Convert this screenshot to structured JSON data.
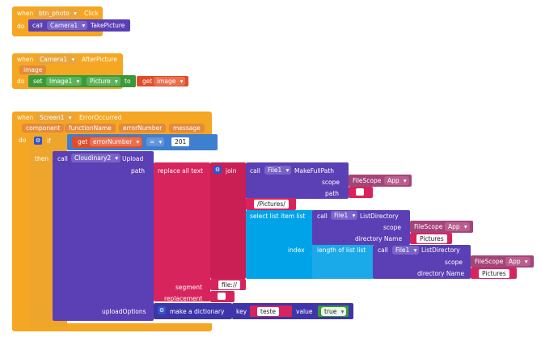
{
  "block1": {
    "when": "when",
    "component": "btn_photo",
    "event": "Click",
    "do": "do",
    "call": "call",
    "target": "Camera1",
    "method": "TakePicture"
  },
  "block2": {
    "when": "when",
    "component": "Camera1",
    "event": "AfterPicture",
    "param": "image",
    "do": "do",
    "set": "set",
    "target": "Image1",
    "property": "Picture",
    "to": "to",
    "get": "get",
    "get_var": "image"
  },
  "block3": {
    "when": "when",
    "component": "Screen1",
    "event": "ErrorOccurred",
    "params": [
      "component",
      "functionName",
      "errorNumber",
      "message"
    ],
    "do": "do",
    "if": "if",
    "get": "get",
    "get_var": "errorNumber",
    "op": "=",
    "value": "201",
    "then": "then",
    "call": "call",
    "upload_target": "Cloudinary2",
    "upload_method": "Upload",
    "path_label": "path",
    "replace_all_text": "replace all text",
    "join": "join",
    "call_file": "call",
    "file_target": "File1",
    "make_full_path": "MakeFullPath",
    "scope_label": "scope",
    "scope_value_1": "FileScope",
    "scope_option_1": "App",
    "path_label_2": "path",
    "pictures_path": "/Pictures/",
    "select_list_item": "select list item list",
    "call_file_2": "call",
    "file_target_2": "File1",
    "list_directory": "ListDirectory",
    "scope_label_2": "scope",
    "scope_value_2": "FileScope",
    "scope_option_2": "App",
    "dirname_label": "directory Name",
    "dirname_value": "Pictures",
    "index_label": "index",
    "length_of_list": "length of list list",
    "call_file_3": "call",
    "file_target_3": "File1",
    "list_directory_2": "ListDirectory",
    "scope_label_3": "scope",
    "scope_value_3": "FileScope",
    "scope_option_3": "App",
    "dirname_label_2": "directory Name",
    "dirname_value_2": "Pictures",
    "segment_label": "segment",
    "segment_value": "file://",
    "replacement_label": "replacement",
    "upload_options_label": "uploadOptions",
    "make_dictionary": "make a dictionary",
    "key_label": "key",
    "key_value": "teste",
    "value_label": "value",
    "value_value": "true"
  }
}
